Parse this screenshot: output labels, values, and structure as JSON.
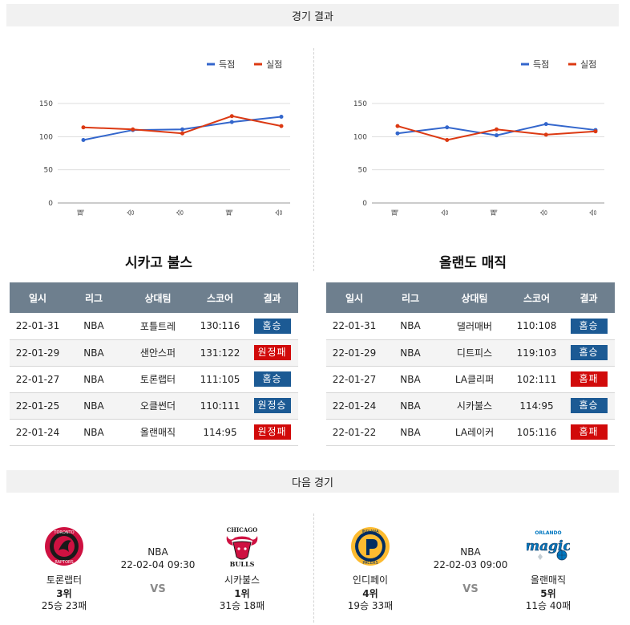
{
  "sections": {
    "results_title": "경기 결과",
    "next_title": "다음 경기"
  },
  "legend": {
    "score": "득점",
    "allowed": "실점"
  },
  "colors": {
    "score": "#3366cc",
    "allowed": "#dc3912",
    "header_bg": "#6e7f8e",
    "win_badge": "#1c5a94",
    "lose_badge": "#d10a0a"
  },
  "chart_data": [
    {
      "type": "line",
      "categories": [
        "패",
        "승",
        "승",
        "패",
        "승"
      ],
      "series": [
        {
          "name": "득점",
          "values": [
            95,
            110,
            111,
            122,
            130
          ]
        },
        {
          "name": "실점",
          "values": [
            114,
            111,
            105,
            131,
            116
          ]
        }
      ],
      "yticks": [
        0,
        50,
        100,
        150
      ],
      "ylim": [
        0,
        150
      ],
      "grid": true,
      "legend_position": "top-right"
    },
    {
      "type": "line",
      "categories": [
        "패",
        "승",
        "패",
        "승",
        "승"
      ],
      "series": [
        {
          "name": "득점",
          "values": [
            105,
            114,
            102,
            119,
            110
          ]
        },
        {
          "name": "실점",
          "values": [
            116,
            95,
            111,
            103,
            108
          ]
        }
      ],
      "yticks": [
        0,
        50,
        100,
        150
      ],
      "ylim": [
        0,
        150
      ],
      "grid": true,
      "legend_position": "top-right"
    }
  ],
  "table_headers": [
    "일시",
    "리그",
    "상대팀",
    "스코어",
    "결과"
  ],
  "left_team": {
    "name": "시카고 불스",
    "games": [
      {
        "date": "22-01-31",
        "league": "NBA",
        "opponent": "포틀트레",
        "score": "130:116",
        "result": "홈승",
        "win": true
      },
      {
        "date": "22-01-29",
        "league": "NBA",
        "opponent": "샌안스퍼",
        "score": "131:122",
        "result": "원정패",
        "win": false
      },
      {
        "date": "22-01-27",
        "league": "NBA",
        "opponent": "토론랩터",
        "score": "111:105",
        "result": "홈승",
        "win": true
      },
      {
        "date": "22-01-25",
        "league": "NBA",
        "opponent": "오클썬더",
        "score": "110:111",
        "result": "원정승",
        "win": true
      },
      {
        "date": "22-01-24",
        "league": "NBA",
        "opponent": "올랜매직",
        "score": "114:95",
        "result": "원정패",
        "win": false
      }
    ]
  },
  "right_team": {
    "name": "올랜도 매직",
    "games": [
      {
        "date": "22-01-31",
        "league": "NBA",
        "opponent": "댈러매버",
        "score": "110:108",
        "result": "홈승",
        "win": true
      },
      {
        "date": "22-01-29",
        "league": "NBA",
        "opponent": "디트피스",
        "score": "119:103",
        "result": "홈승",
        "win": true
      },
      {
        "date": "22-01-27",
        "league": "NBA",
        "opponent": "LA클리퍼",
        "score": "102:111",
        "result": "홈패",
        "win": false
      },
      {
        "date": "22-01-24",
        "league": "NBA",
        "opponent": "시카불스",
        "score": "114:95",
        "result": "홈승",
        "win": true
      },
      {
        "date": "22-01-22",
        "league": "NBA",
        "opponent": "LA레이커",
        "score": "105:116",
        "result": "홈패",
        "win": false
      }
    ]
  },
  "next_games": [
    {
      "league": "NBA",
      "datetime": "22-02-04 09:30",
      "vs": "VS",
      "away": {
        "name": "토론랩터",
        "rank": "3위",
        "record": "25승 23패",
        "logo": "raptors-logo",
        "logo_text": "TORONTO RAPTORS"
      },
      "home": {
        "name": "시카불스",
        "rank": "1위",
        "record": "31승 18패",
        "logo": "bulls-logo",
        "logo_text": "CHICAGO BULLS"
      }
    },
    {
      "league": "NBA",
      "datetime": "22-02-03 09:00",
      "vs": "VS",
      "away": {
        "name": "인디페이",
        "rank": "4위",
        "record": "19승 33패",
        "logo": "pacers-logo",
        "logo_text": "INDIANA PACERS"
      },
      "home": {
        "name": "올랜매직",
        "rank": "5위",
        "record": "11승 40패",
        "logo": "magic-logo",
        "logo_text": "ORLANDO MAGIC"
      }
    }
  ]
}
